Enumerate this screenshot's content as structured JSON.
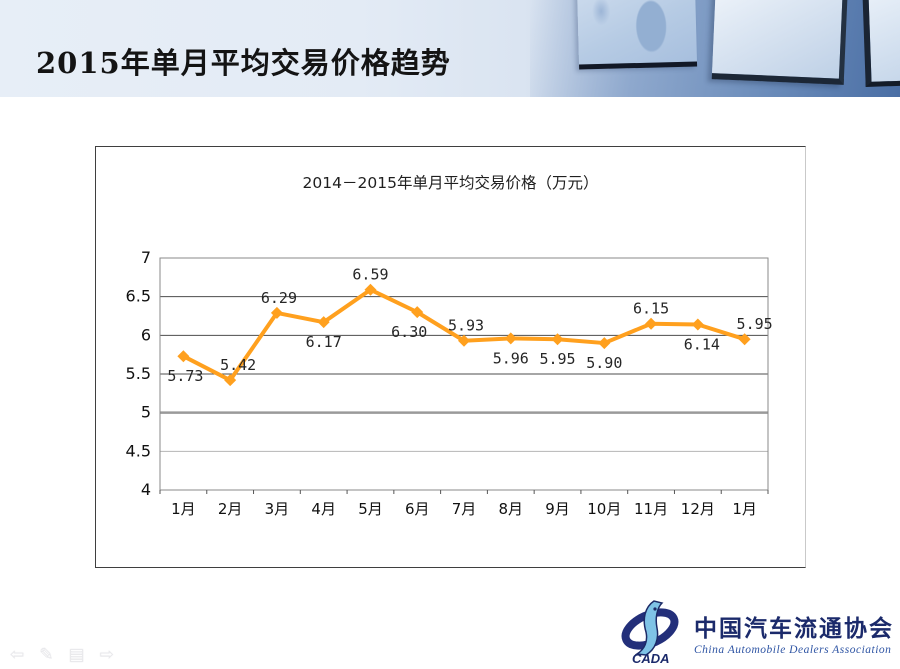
{
  "slide": {
    "title": "2015年单月平均交易价格趋势"
  },
  "chart_data": {
    "type": "line",
    "title": "2014－2015年单月平均交易价格（万元）",
    "categories": [
      "1月",
      "2月",
      "3月",
      "4月",
      "5月",
      "6月",
      "7月",
      "8月",
      "9月",
      "10月",
      "11月",
      "12月",
      "1月"
    ],
    "series": [
      {
        "name": "平均交易价格",
        "values": [
          5.73,
          5.42,
          6.29,
          6.17,
          6.59,
          6.3,
          5.93,
          5.96,
          5.95,
          5.9,
          6.15,
          6.14,
          5.95
        ],
        "labels": [
          "5.73",
          "5.42",
          "6.29",
          "6.17",
          "6.59",
          "6.30",
          "5.93",
          "5.96",
          "5.95",
          "5.90",
          "6.15",
          "6.14",
          "5.95"
        ]
      }
    ],
    "xlabel": "",
    "ylabel": "",
    "ylim": [
      4,
      7
    ],
    "ytick_step": 0.5,
    "grid": true,
    "legend_position": "none",
    "line_color": "#FFA01E",
    "label_sides": [
      "below",
      "above",
      "above",
      "below",
      "above",
      "below",
      "above",
      "below",
      "below",
      "below",
      "above",
      "below",
      "above"
    ],
    "label_dx": [
      2,
      8,
      2,
      0,
      0,
      -8,
      2,
      0,
      0,
      0,
      0,
      4,
      10
    ]
  },
  "footer": {
    "nav_icons": [
      {
        "name": "previous-slide-arrow-icon",
        "glyph": "⇦"
      },
      {
        "name": "pen-tool-icon",
        "glyph": "✎"
      },
      {
        "name": "slide-menu-icon",
        "glyph": "▤"
      },
      {
        "name": "next-slide-arrow-icon",
        "glyph": "⇨"
      }
    ],
    "logo": {
      "acronym": "CADA",
      "name_cn": "中国汽车流通协会",
      "name_en": "China Automobile Dealers Association"
    }
  },
  "colors": {
    "accent_orange": "#FFA01E",
    "logo_navy": "#1B2A6B",
    "logo_blue": "#2F55A4",
    "header_blue": "#9DB5D6"
  }
}
